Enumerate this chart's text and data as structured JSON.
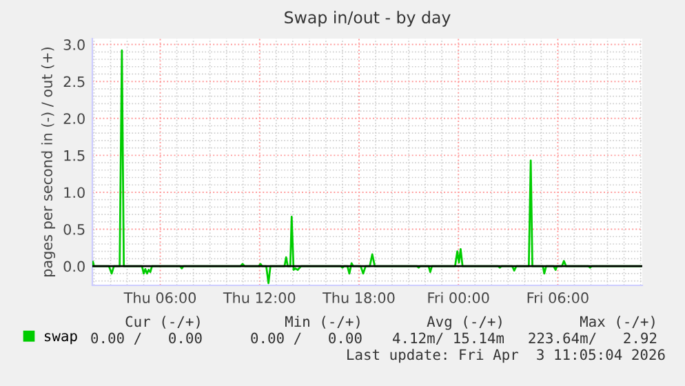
{
  "chart_data": {
    "type": "line",
    "title": "Swap in/out - by day",
    "ylabel": "pages per second in (-) / out (+)",
    "xlim": [
      "2026-04-02T01:54",
      "2026-04-03T11:06"
    ],
    "ylim": [
      -0.26,
      3.08
    ],
    "xticks": [
      {
        "value": "2026-04-02T06:00",
        "label": "Thu 06:00"
      },
      {
        "value": "2026-04-02T12:00",
        "label": "Thu 12:00"
      },
      {
        "value": "2026-04-02T18:00",
        "label": "Thu 18:00"
      },
      {
        "value": "2026-04-03T00:00",
        "label": "Fri 00:00"
      },
      {
        "value": "2026-04-03T06:00",
        "label": "Fri 06:00"
      }
    ],
    "yticks": [
      {
        "value": 0,
        "label": "0.0"
      },
      {
        "value": 0.5,
        "label": "0.5"
      },
      {
        "value": 1,
        "label": "1.0"
      },
      {
        "value": 1.5,
        "label": "1.5"
      },
      {
        "value": 2,
        "label": "2.0"
      },
      {
        "value": 2.5,
        "label": "2.5"
      },
      {
        "value": 3,
        "label": "3.0"
      }
    ],
    "grid": true,
    "legend": "bottom left",
    "ref_lines": [
      {
        "axis": "y",
        "value": 0,
        "color": "#000000"
      }
    ],
    "series": [
      {
        "name": "swap",
        "color": "#00cc00",
        "x": [
          "2026-04-02T01:54",
          "2026-04-02T01:56",
          "2026-04-02T02:00",
          "2026-04-02T02:54",
          "2026-04-02T03:04",
          "2026-04-02T03:12",
          "2026-04-02T03:33",
          "2026-04-02T03:41",
          "2026-04-02T03:48",
          "2026-04-02T04:54",
          "2026-04-02T05:00",
          "2026-04-02T05:06",
          "2026-04-02T05:12",
          "2026-04-02T05:18",
          "2026-04-02T05:24",
          "2026-04-02T05:30",
          "2026-04-02T07:12",
          "2026-04-02T07:18",
          "2026-04-02T07:24",
          "2026-04-02T10:51",
          "2026-04-02T10:58",
          "2026-04-02T11:06",
          "2026-04-02T11:57",
          "2026-04-02T12:03",
          "2026-04-02T12:09",
          "2026-04-02T12:24",
          "2026-04-02T12:32",
          "2026-04-02T12:39",
          "2026-04-02T13:30",
          "2026-04-02T13:36",
          "2026-04-02T13:42",
          "2026-04-02T13:51",
          "2026-04-02T13:56",
          "2026-04-02T14:03",
          "2026-04-02T14:09",
          "2026-04-02T14:18",
          "2026-04-02T14:30",
          "2026-04-02T16:54",
          "2026-04-02T17:00",
          "2026-04-02T17:06",
          "2026-04-02T17:18",
          "2026-04-02T17:25",
          "2026-04-02T17:33",
          "2026-04-02T17:39",
          "2026-04-02T18:06",
          "2026-04-02T18:15",
          "2026-04-02T18:24",
          "2026-04-02T18:39",
          "2026-04-02T18:48",
          "2026-04-02T18:57",
          "2026-04-02T21:30",
          "2026-04-02T21:36",
          "2026-04-02T21:42",
          "2026-04-02T22:12",
          "2026-04-02T22:18",
          "2026-04-02T22:24",
          "2026-04-02T23:48",
          "2026-04-02T23:56",
          "2026-04-03T00:02",
          "2026-04-03T00:08",
          "2026-04-03T00:15",
          "2026-04-03T02:24",
          "2026-04-03T02:30",
          "2026-04-03T02:36",
          "2026-04-03T03:15",
          "2026-04-03T03:22",
          "2026-04-03T03:30",
          "2026-04-03T04:15",
          "2026-04-03T04:22",
          "2026-04-03T04:28",
          "2026-04-03T05:06",
          "2026-04-03T05:11",
          "2026-04-03T05:18",
          "2026-04-03T05:45",
          "2026-04-03T05:52",
          "2026-04-03T05:57",
          "2026-04-03T06:15",
          "2026-04-03T06:22",
          "2026-04-03T06:30",
          "2026-04-03T07:51",
          "2026-04-03T07:57",
          "2026-04-03T08:03",
          "2026-04-03T11:00"
        ],
        "values": [
          0,
          0.06,
          0,
          0,
          -0.1,
          0,
          0,
          2.92,
          0,
          0,
          -0.1,
          -0.04,
          -0.1,
          -0.05,
          -0.08,
          0,
          0,
          -0.03,
          0,
          0,
          0.03,
          0,
          0,
          0.03,
          0,
          0,
          -0.23,
          0,
          0,
          0.12,
          0,
          0,
          0.67,
          -0.05,
          -0.03,
          -0.05,
          0,
          0,
          -0.02,
          0,
          0,
          -0.1,
          0.04,
          0,
          0,
          -0.1,
          0,
          0,
          0.16,
          0,
          0,
          -0.02,
          0,
          0,
          -0.08,
          0,
          0,
          0.2,
          0.05,
          0.23,
          0,
          0,
          -0.02,
          0,
          0,
          -0.06,
          0,
          0,
          1.43,
          0,
          0,
          -0.1,
          0,
          0,
          -0.05,
          0,
          0,
          0.07,
          0,
          0,
          -0.02,
          0,
          0
        ]
      }
    ],
    "annotations": [
      "Cur (-/+)",
      "Min (-/+)",
      "Avg (-/+)",
      "Max (-/+)",
      "0.00 /   0.00",
      "0.00 /   0.00",
      "4.12m/ 15.14m",
      "223.64m/   2.92",
      "Last update: Fri Apr  3 11:05:04 2026"
    ]
  }
}
